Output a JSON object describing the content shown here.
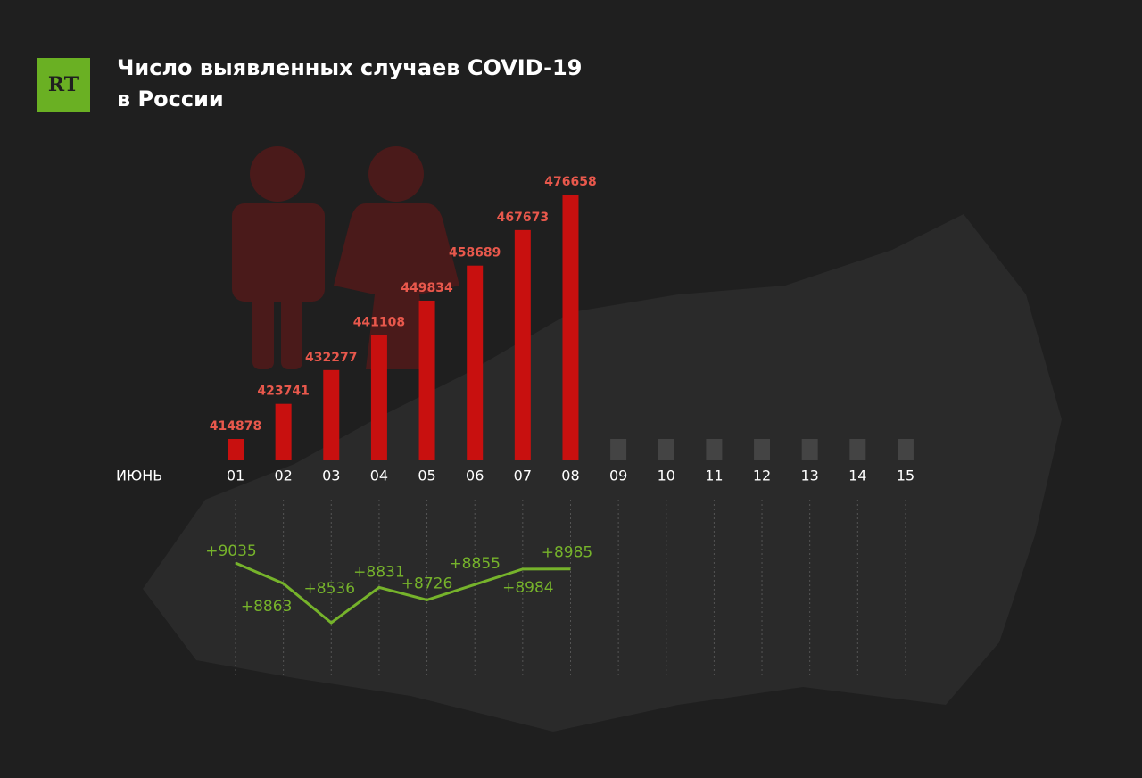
{
  "logo": "RT",
  "chart_data": {
    "type": "bar",
    "title": [
      "Число выявленных случаев COVID-19",
      "в России"
    ],
    "x_label": "ИЮНЬ",
    "categories": [
      "01",
      "02",
      "03",
      "04",
      "05",
      "06",
      "07",
      "08",
      "09",
      "10",
      "11",
      "12",
      "13",
      "14",
      "15"
    ],
    "values": [
      414878,
      423741,
      432277,
      441108,
      449834,
      458689,
      467673,
      476658,
      null,
      null,
      null,
      null,
      null,
      null,
      null
    ],
    "color": "#c8100f",
    "label_color": "#e8584c",
    "increase": {
      "type": "line",
      "color": "#76b32b",
      "values": [
        9035,
        8863,
        8536,
        8831,
        8726,
        8855,
        8984,
        8985
      ],
      "value_labels": [
        "+9035",
        "+8863",
        "+8536",
        "+8831",
        "+8726",
        "+8855",
        "+8984",
        "+8985"
      ]
    }
  }
}
